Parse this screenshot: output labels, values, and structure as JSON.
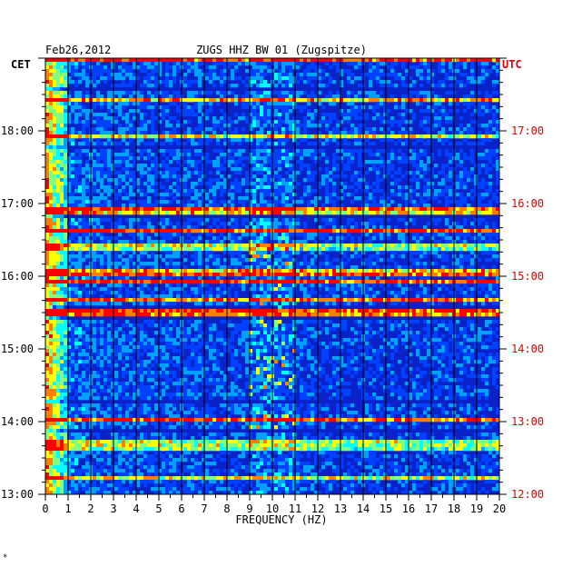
{
  "header": {
    "date": "Feb26,2012",
    "station": "ZUGS HHZ BW 01 (Zugspitze)"
  },
  "axes": {
    "left_zone": "CET",
    "right_zone": "UTC",
    "footnote": "*"
  },
  "colors": {
    "background": "#ffffff",
    "frame": "#000000",
    "utc_labels": "#e00000",
    "field": "#0a22c8"
  },
  "chart_data": {
    "type": "heatmap",
    "xlabel": "FREQUENCY (HZ)",
    "xlim": [
      0,
      20
    ],
    "x_ticks": [
      "0",
      "1",
      "2",
      "3",
      "4",
      "5",
      "6",
      "7",
      "8",
      "9",
      "10",
      "11",
      "12",
      "13",
      "14",
      "15",
      "16",
      "17",
      "18",
      "19",
      "20"
    ],
    "y_time_range_cet": [
      "13:00",
      "19:00"
    ],
    "y_ticks_cet": [
      "13:00",
      "14:00",
      "15:00",
      "16:00",
      "17:00",
      "18:00"
    ],
    "y_ticks_utc": [
      "12:00",
      "13:00",
      "14:00",
      "15:00",
      "16:00",
      "17:00"
    ],
    "colormap": [
      "#00007a",
      "#0010c8",
      "#0040ff",
      "#00a0ff",
      "#00ffff",
      "#80ff80",
      "#ffff00",
      "#ff8000",
      "#ff0000"
    ],
    "dominant_band_hz": [
      0,
      1
    ],
    "secondary_band_hz": [
      9,
      11
    ]
  }
}
